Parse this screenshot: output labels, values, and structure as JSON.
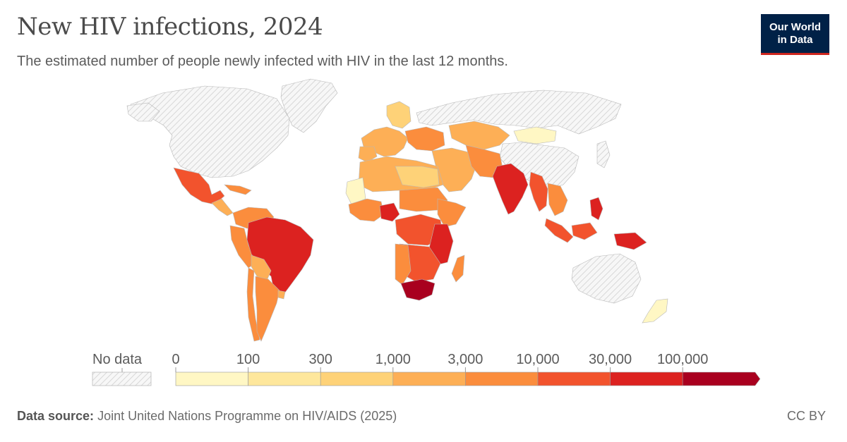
{
  "header": {
    "title": "New HIV infections, 2024",
    "subtitle": "The estimated number of people newly infected with HIV in the last 12 months.",
    "logo_line1": "Our World",
    "logo_line2": "in Data"
  },
  "legend": {
    "no_data_label": "No data",
    "tick_labels": [
      "0",
      "100",
      "300",
      "1,000",
      "3,000",
      "10,000",
      "30,000",
      "100,000"
    ],
    "bin_colors": [
      "#fff7c4",
      "#fee79c",
      "#fed278",
      "#fdaf56",
      "#fb8d3d",
      "#f2532d",
      "#dc2220",
      "#a9001f"
    ],
    "no_data_color": "#e6e6e6"
  },
  "footer": {
    "source_label": "Data source:",
    "source_text": "Joint United Nations Programme on HIV/AIDS (2025)",
    "license": "CC BY"
  }
}
